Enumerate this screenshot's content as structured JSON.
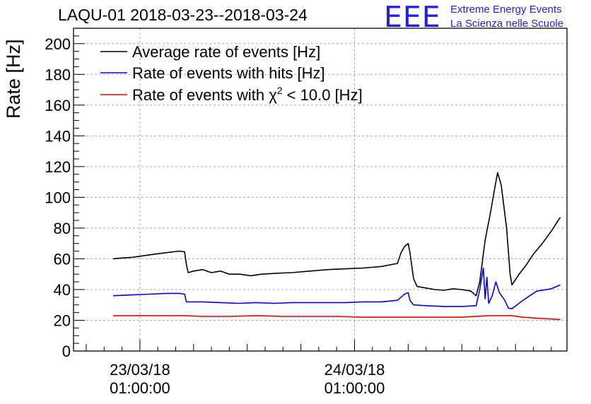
{
  "header": {
    "title": "LAQU-01 2018-03-23--2018-03-24",
    "logo_text": "EEE",
    "logo_line1": "Extreme Energy Events",
    "logo_line2": "La Scienza nelle Scuole"
  },
  "colors": {
    "logo": "#2020e8"
  },
  "chart_data": {
    "type": "line",
    "title": "LAQU-01 2018-03-23--2018-03-24",
    "ylabel": "Rate [Hz]",
    "xlabel": "",
    "ylim": [
      0,
      210
    ],
    "yticks": [
      0,
      20,
      40,
      60,
      80,
      100,
      120,
      140,
      160,
      180,
      200
    ],
    "x_unit": "hours since 2018-03-22 20:00",
    "xlim": [
      0,
      26.5
    ],
    "x_major_ticks": [
      {
        "x": 3,
        "label_line1": "23/03/18",
        "label_line2": "01:00:00"
      },
      {
        "x": 15,
        "label_line1": "24/03/18",
        "label_line2": "01:00:00"
      }
    ],
    "grid": true,
    "legend_position": "top-left",
    "series": [
      {
        "name": "Average rate of events [Hz]",
        "legend_label": "Average rate of events [Hz]",
        "color": "#000000",
        "points": [
          [
            1.5,
            60
          ],
          [
            2.0,
            60.5
          ],
          [
            2.6,
            61
          ],
          [
            3.2,
            62
          ],
          [
            3.8,
            63
          ],
          [
            4.5,
            64
          ],
          [
            5.2,
            65
          ],
          [
            5.5,
            64.5
          ],
          [
            5.6,
            56
          ],
          [
            5.7,
            51
          ],
          [
            6.0,
            52
          ],
          [
            6.5,
            53
          ],
          [
            7.0,
            51
          ],
          [
            7.5,
            52
          ],
          [
            8.0,
            50
          ],
          [
            8.6,
            50
          ],
          [
            9.2,
            49
          ],
          [
            9.8,
            50
          ],
          [
            10.5,
            50.5
          ],
          [
            11.5,
            51
          ],
          [
            12.5,
            52
          ],
          [
            13.5,
            53
          ],
          [
            14.5,
            53.5
          ],
          [
            15.5,
            54
          ],
          [
            16.5,
            55
          ],
          [
            17.4,
            57
          ],
          [
            17.6,
            64
          ],
          [
            17.8,
            68
          ],
          [
            18.0,
            70
          ],
          [
            18.1,
            64
          ],
          [
            18.3,
            47
          ],
          [
            18.5,
            42
          ],
          [
            19.0,
            41
          ],
          [
            19.5,
            40
          ],
          [
            20.0,
            39.5
          ],
          [
            20.5,
            40.5
          ],
          [
            21.0,
            40
          ],
          [
            21.5,
            39
          ],
          [
            21.8,
            36
          ],
          [
            22.0,
            45
          ],
          [
            22.3,
            72
          ],
          [
            22.6,
            90
          ],
          [
            22.9,
            110
          ],
          [
            23.0,
            116
          ],
          [
            23.2,
            108
          ],
          [
            23.5,
            80
          ],
          [
            23.7,
            50
          ],
          [
            23.8,
            43
          ],
          [
            24.2,
            50
          ],
          [
            24.6,
            56
          ],
          [
            25.0,
            63
          ],
          [
            25.5,
            70
          ],
          [
            26.0,
            78
          ],
          [
            26.5,
            87
          ]
        ]
      },
      {
        "name": "Rate of events with hits [Hz]",
        "legend_label": "Rate of events with hits [Hz]",
        "color": "#0000ee",
        "points": [
          [
            1.5,
            36
          ],
          [
            2.5,
            36.5
          ],
          [
            3.5,
            37
          ],
          [
            4.5,
            37.5
          ],
          [
            5.2,
            37.5
          ],
          [
            5.5,
            37
          ],
          [
            5.6,
            32
          ],
          [
            6.5,
            32
          ],
          [
            7.5,
            31.5
          ],
          [
            8.5,
            31
          ],
          [
            9.5,
            31.5
          ],
          [
            10.5,
            31
          ],
          [
            11.5,
            31.5
          ],
          [
            12.5,
            31.5
          ],
          [
            13.5,
            31.5
          ],
          [
            14.5,
            31.5
          ],
          [
            15.5,
            32
          ],
          [
            16.5,
            32
          ],
          [
            17.4,
            33
          ],
          [
            17.6,
            35
          ],
          [
            17.8,
            37
          ],
          [
            18.0,
            38
          ],
          [
            18.1,
            33
          ],
          [
            18.3,
            30
          ],
          [
            19.0,
            29.5
          ],
          [
            20.0,
            29
          ],
          [
            21.0,
            29
          ],
          [
            21.8,
            29.5
          ],
          [
            22.0,
            40
          ],
          [
            22.2,
            54
          ],
          [
            22.3,
            34
          ],
          [
            22.4,
            48
          ],
          [
            22.5,
            31
          ],
          [
            22.7,
            36
          ],
          [
            22.9,
            45
          ],
          [
            23.1,
            38
          ],
          [
            23.4,
            33
          ],
          [
            23.6,
            28
          ],
          [
            23.8,
            27.5
          ],
          [
            24.3,
            32
          ],
          [
            24.8,
            36
          ],
          [
            25.2,
            39
          ],
          [
            26.0,
            40.5
          ],
          [
            26.5,
            43
          ]
        ]
      },
      {
        "name": "Rate of events with χ² < 10.0 [Hz]",
        "legend_label": "Rate of events with χ",
        "legend_sup": "2",
        "legend_suffix": " < 10.0 [Hz]",
        "color": "#ee0000",
        "points": [
          [
            1.5,
            23
          ],
          [
            3.0,
            23
          ],
          [
            4.5,
            23
          ],
          [
            5.5,
            23
          ],
          [
            6.5,
            22.5
          ],
          [
            8.0,
            22.5
          ],
          [
            9.5,
            23
          ],
          [
            11.0,
            22.5
          ],
          [
            12.5,
            22.5
          ],
          [
            14.0,
            22.5
          ],
          [
            15.5,
            22
          ],
          [
            17.0,
            22
          ],
          [
            18.0,
            22
          ],
          [
            19.5,
            22
          ],
          [
            21.0,
            22
          ],
          [
            22.5,
            23
          ],
          [
            23.2,
            23
          ],
          [
            23.8,
            23
          ],
          [
            24.4,
            22
          ],
          [
            25.0,
            21.5
          ],
          [
            25.8,
            21
          ],
          [
            26.5,
            20.5
          ]
        ]
      }
    ]
  }
}
